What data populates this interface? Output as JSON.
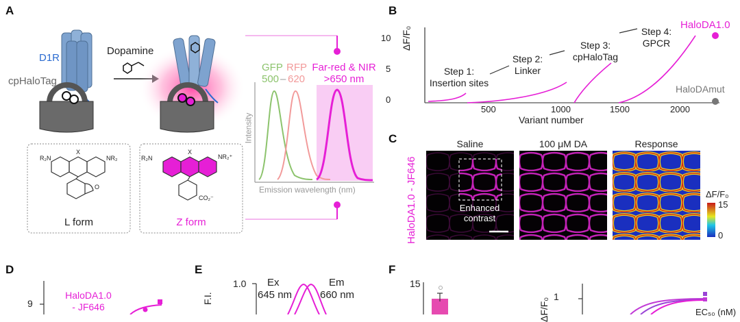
{
  "panels": {
    "a": "A",
    "b": "B",
    "c": "C",
    "d": "D",
    "e": "E",
    "f": "F"
  },
  "colors": {
    "magenta": "#e61fd6",
    "green": "#8cc36c",
    "pink": "#f29a9a",
    "blue_receptor": "#7ea3cf",
    "halo_gray": "#666666",
    "far_red_band": "#f9cdf4"
  },
  "panel_a": {
    "d1r_label": "D1R",
    "cphalotag_label": "cpHaloTag",
    "dopamine_label": "Dopamine",
    "l_form_label": "L form",
    "z_form_label": "Z form",
    "chem_nr2_left": "R₂N",
    "chem_nr2_right": "NR₂",
    "chem_x": "X",
    "chem_o": "O",
    "chem_co2": "CO₂⁻",
    "chem_nr2_plus": "NR₂⁺",
    "spectrum": {
      "gfp_label": "GFP",
      "rfp_label": "RFP",
      "gfp_value": "500",
      "dash": "–",
      "rfp_value": "620",
      "farred_label": "Far-red & NIR",
      "farred_value": ">650 nm",
      "y_axis": "Intensity",
      "x_axis": "Emission wavelength (nm)"
    }
  },
  "panel_b": {
    "y_axis": "ΔF/F₀",
    "x_axis": "Variant number",
    "y_ticks": [
      "0",
      "5",
      "10"
    ],
    "x_ticks": [
      "500",
      "1000",
      "1500",
      "2000"
    ],
    "steps": [
      {
        "l1": "Step 1:",
        "l2": "Insertion sites"
      },
      {
        "l1": "Step 2:",
        "l2": "Linker"
      },
      {
        "l1": "Step 3:",
        "l2": "cpHaloTag"
      },
      {
        "l1": "Step 4:",
        "l2": "GPCR"
      }
    ],
    "best_label": "HaloDA1.0",
    "mut_label": "HaloDAmut",
    "best_value": 10,
    "mut_value": 0
  },
  "panel_c": {
    "side_label": "HaloDA1.0 - JF646",
    "col1": "Saline",
    "col2": "100 μM DA",
    "col3": "Response",
    "inset_l1": "Enhanced",
    "inset_l2": "contrast",
    "cbar_label": "ΔF/F₀",
    "cbar_max": "15",
    "cbar_min": "0"
  },
  "panel_d": {
    "y_tick": "9",
    "legend_l1": "HaloDA1.0",
    "legend_l2": "- JF646"
  },
  "panel_e": {
    "y_axis": "F.I.",
    "y_tick": "1.0",
    "ex_label": "Ex",
    "ex_value": "645 nm",
    "em_label": "Em",
    "em_value": "660 nm"
  },
  "panel_f": {
    "y_tick_left": "15",
    "y_axis_right": "ΔF/F₀",
    "y_tick_right": "1",
    "legend_partial": "EC₅₀ (nM)"
  }
}
